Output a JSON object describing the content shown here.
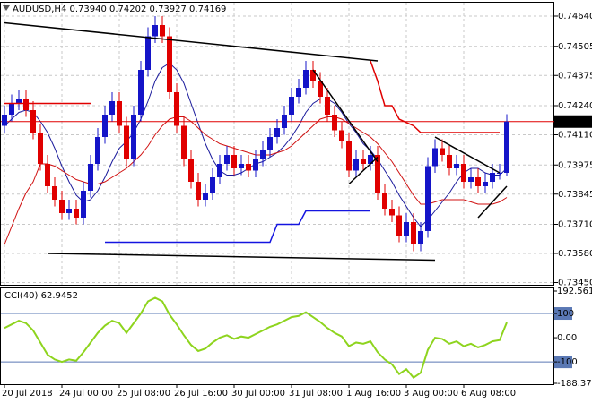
{
  "chart_data": [
    {
      "type": "candlestick",
      "title": "AUDUSD,H4 0.73940 0.74202 0.73927 0.74169",
      "categories": [
        "20 Jul 2018",
        null,
        null,
        null,
        null,
        null,
        null,
        null,
        "24 Jul 00:00",
        null,
        null,
        null,
        null,
        null,
        null,
        null,
        "25 Jul 08:00",
        null,
        null,
        null,
        null,
        null,
        null,
        null,
        "26 Jul 16:00",
        null,
        null,
        null,
        null,
        null,
        null,
        null,
        "30 Jul 00:00",
        null,
        null,
        null,
        null,
        null,
        null,
        null,
        "31 Jul 08:00",
        null,
        null,
        null,
        null,
        null,
        null,
        null,
        "1 Aug 16:00",
        null,
        null,
        null,
        null,
        null,
        null,
        null,
        "3 Aug 00:00",
        null,
        null,
        null,
        null,
        null,
        null,
        null,
        "6 Aug 08:00",
        null,
        null,
        null,
        null,
        null,
        null
      ],
      "open": [
        0.7415,
        0.742,
        0.7425,
        0.7427,
        0.7422,
        0.7412,
        0.7398,
        0.7388,
        0.7382,
        0.7376,
        0.7378,
        0.7374,
        0.7386,
        0.7398,
        0.741,
        0.742,
        0.7426,
        0.7415,
        0.74,
        0.742,
        0.744,
        0.7455,
        0.746,
        0.7455,
        0.743,
        0.7415,
        0.74,
        0.739,
        0.7382,
        0.7385,
        0.7392,
        0.7398,
        0.7402,
        0.7396,
        0.7398,
        0.7395,
        0.74,
        0.7404,
        0.741,
        0.7414,
        0.742,
        0.7428,
        0.7432,
        0.744,
        0.7435,
        0.7428,
        0.742,
        0.7413,
        0.7408,
        0.7395,
        0.74,
        0.7398,
        0.7402,
        0.7385,
        0.7378,
        0.7375,
        0.7366,
        0.7372,
        0.7362,
        0.7368,
        0.7397,
        0.7405,
        0.7402,
        0.7396,
        0.7398,
        0.739,
        0.7392,
        0.7388,
        0.739,
        0.7394,
        0.7394
      ],
      "high": [
        0.7424,
        0.7429,
        0.7431,
        0.7431,
        0.7426,
        0.7416,
        0.7402,
        0.7392,
        0.7386,
        0.7382,
        0.7382,
        0.739,
        0.7402,
        0.7414,
        0.7424,
        0.743,
        0.743,
        0.7419,
        0.7424,
        0.7444,
        0.7459,
        0.7464,
        0.7464,
        0.7459,
        0.7434,
        0.7419,
        0.7404,
        0.7394,
        0.7389,
        0.7396,
        0.7402,
        0.7406,
        0.7406,
        0.7402,
        0.7402,
        0.7404,
        0.7408,
        0.7414,
        0.7418,
        0.7424,
        0.7432,
        0.7436,
        0.7444,
        0.7444,
        0.7439,
        0.7432,
        0.7424,
        0.7417,
        0.7412,
        0.7404,
        0.7404,
        0.7406,
        0.7406,
        0.7389,
        0.7382,
        0.7379,
        0.7376,
        0.7376,
        0.7372,
        0.7401,
        0.7409,
        0.7409,
        0.7406,
        0.7402,
        0.7402,
        0.7396,
        0.7396,
        0.7394,
        0.7398,
        0.7398,
        0.74202
      ],
      "low": [
        0.7412,
        0.7417,
        0.7422,
        0.7419,
        0.7409,
        0.7395,
        0.7385,
        0.7379,
        0.7373,
        0.7373,
        0.7371,
        0.7371,
        0.7383,
        0.7395,
        0.7407,
        0.7417,
        0.7412,
        0.7397,
        0.7397,
        0.7417,
        0.7437,
        0.7452,
        0.7452,
        0.7427,
        0.7412,
        0.7397,
        0.7387,
        0.7379,
        0.7379,
        0.7382,
        0.7389,
        0.7395,
        0.7393,
        0.7393,
        0.7392,
        0.7392,
        0.7397,
        0.7401,
        0.7407,
        0.7411,
        0.7417,
        0.7425,
        0.7429,
        0.7432,
        0.7425,
        0.7417,
        0.741,
        0.7405,
        0.7392,
        0.7392,
        0.7395,
        0.7395,
        0.7382,
        0.7375,
        0.7372,
        0.7363,
        0.7363,
        0.7359,
        0.7359,
        0.7365,
        0.7394,
        0.7399,
        0.7393,
        0.7393,
        0.7387,
        0.7387,
        0.7385,
        0.7385,
        0.7387,
        0.7391,
        0.73927
      ],
      "close": [
        0.742,
        0.7425,
        0.7427,
        0.7422,
        0.7412,
        0.7398,
        0.7388,
        0.7382,
        0.7376,
        0.7378,
        0.7374,
        0.7386,
        0.7398,
        0.741,
        0.742,
        0.7426,
        0.7415,
        0.74,
        0.742,
        0.744,
        0.7455,
        0.746,
        0.7455,
        0.743,
        0.7415,
        0.74,
        0.739,
        0.7382,
        0.7385,
        0.7392,
        0.7398,
        0.7402,
        0.7396,
        0.7398,
        0.7395,
        0.74,
        0.7404,
        0.741,
        0.7414,
        0.742,
        0.7428,
        0.7432,
        0.744,
        0.7435,
        0.7428,
        0.742,
        0.7413,
        0.7408,
        0.7395,
        0.74,
        0.7398,
        0.7402,
        0.7385,
        0.7378,
        0.7375,
        0.7366,
        0.7372,
        0.7362,
        0.7368,
        0.7397,
        0.7405,
        0.7402,
        0.7396,
        0.7398,
        0.739,
        0.7392,
        0.7388,
        0.739,
        0.7394,
        0.7394,
        0.74169
      ],
      "up_color": "#1414c8",
      "down_color": "#e00000",
      "series": [
        {
          "color": "#1a1a9c",
          "values": [
            0.7415,
            0.7418,
            0.7421,
            0.7422,
            0.7421,
            0.7417,
            0.7412,
            0.7405,
            0.7397,
            0.739,
            0.7384,
            0.7381,
            0.7382,
            0.7386,
            0.7392,
            0.7399,
            0.7405,
            0.7408,
            0.7412,
            0.7418,
            0.7426,
            0.7435,
            0.7441,
            0.7443,
            0.744,
            0.7434,
            0.7425,
            0.7416,
            0.7407,
            0.74,
            0.7395,
            0.7393,
            0.7393,
            0.7394,
            0.7396,
            0.7398,
            0.7399,
            0.7401,
            0.7403,
            0.7406,
            0.741,
            0.7415,
            0.7421,
            0.7425,
            0.7427,
            0.7427,
            0.7425,
            0.7421,
            0.7416,
            0.7412,
            0.7407,
            0.7404,
            0.74,
            0.7395,
            0.739,
            0.7384,
            0.7379,
            0.7374,
            0.737,
            0.7373,
            0.7377,
            0.7381,
            0.7385,
            0.739,
            0.7394,
            0.7396,
            0.7396,
            0.7394,
            0.7393,
            0.7393,
            0.7396
          ]
        },
        {
          "color": "#d01010",
          "values": [
            0.7362,
            0.737,
            0.7378,
            0.7385,
            0.739,
            0.7398,
            0.7398,
            0.7397,
            0.7395,
            0.7393,
            0.7391,
            0.739,
            0.7389,
            0.7389,
            0.739,
            0.7392,
            0.7394,
            0.7396,
            0.7399,
            0.7402,
            0.7406,
            0.7411,
            0.7415,
            0.7418,
            0.7419,
            0.7419,
            0.7417,
            0.7414,
            0.7411,
            0.7409,
            0.7407,
            0.7406,
            0.7405,
            0.7404,
            0.7403,
            0.7402,
            0.7402,
            0.7402,
            0.7403,
            0.7404,
            0.7406,
            0.7409,
            0.7412,
            0.7415,
            0.7418,
            0.7419,
            0.7419,
            0.7418,
            0.7416,
            0.7414,
            0.7412,
            0.741,
            0.7407,
            0.7403,
            0.7399,
            0.7394,
            0.7389,
            0.7384,
            0.738,
            0.738,
            0.7381,
            0.7382,
            0.7382,
            0.7382,
            0.7382,
            0.7381,
            0.738,
            0.738,
            0.738,
            0.7381,
            0.7383
          ]
        }
      ],
      "lines": [
        {
          "color": "#000000",
          "x": [
            0,
            52
          ],
          "values": [
            0.7461,
            0.7444
          ]
        },
        {
          "color": "#000000",
          "x": [
            6,
            60
          ],
          "values": [
            0.7358,
            0.7355
          ]
        },
        {
          "color": "#000000",
          "x": [
            43,
            52
          ],
          "values": [
            0.744,
            0.7399
          ]
        },
        {
          "color": "#000000",
          "x": [
            48,
            52
          ],
          "values": [
            0.7389,
            0.7401
          ]
        },
        {
          "color": "#000000",
          "x": [
            60,
            69
          ],
          "values": [
            0.741,
            0.7394
          ]
        },
        {
          "color": "#000000",
          "x": [
            66,
            70
          ],
          "values": [
            0.7374,
            0.7388
          ]
        },
        {
          "color": "#e00000",
          "x": [
            51,
            52,
            53,
            54,
            55,
            57,
            58,
            69
          ],
          "values": [
            0.7444,
            0.7435,
            0.7424,
            0.7424,
            0.7418,
            0.7415,
            0.7412,
            0.7412
          ]
        },
        {
          "color": "#1414e0",
          "x": [
            14,
            37,
            38,
            41,
            42,
            51
          ],
          "values": [
            0.7363,
            0.7363,
            0.7371,
            0.7371,
            0.7377,
            0.7377
          ]
        },
        {
          "color": "#e00000",
          "x": [
            0,
            12
          ],
          "values": [
            0.7425,
            0.7425
          ]
        }
      ],
      "price_label": {
        "value": 0.74169,
        "label": "0.74169"
      },
      "ylim": [
        0.7344,
        0.74692
      ],
      "yticks": [
        {
          "value": 0.7464,
          "label": "0.74640"
        },
        {
          "value": 0.74505,
          "label": "0.74505"
        },
        {
          "value": 0.74375,
          "label": "0.74375"
        },
        {
          "value": 0.7424,
          "label": "0.74240"
        },
        {
          "value": 0.7411,
          "label": "0.74110"
        },
        {
          "value": 0.73975,
          "label": "0.73975"
        },
        {
          "value": 0.73845,
          "label": "0.73845"
        },
        {
          "value": 0.7371,
          "label": "0.73710"
        },
        {
          "value": 0.7358,
          "label": "0.73580"
        },
        {
          "value": 0.7345,
          "label": "0.73450"
        }
      ],
      "grid": true
    },
    {
      "type": "line",
      "title": "CCI(40) 62.9452",
      "color": "#8ed41e",
      "values": [
        40,
        55,
        70,
        60,
        30,
        -20,
        -70,
        -90,
        -100,
        -90,
        -95,
        -60,
        -20,
        20,
        50,
        70,
        60,
        20,
        60,
        100,
        150,
        165,
        150,
        95,
        55,
        10,
        -30,
        -55,
        -45,
        -20,
        0,
        10,
        -5,
        5,
        0,
        15,
        30,
        45,
        55,
        70,
        85,
        90,
        105,
        85,
        65,
        40,
        20,
        5,
        -35,
        -20,
        -25,
        -15,
        -60,
        -90,
        -110,
        -150,
        -130,
        -165,
        -145,
        -50,
        0,
        -5,
        -25,
        -15,
        -35,
        -25,
        -40,
        -30,
        -15,
        -10,
        62.9452
      ],
      "ylim": [
        -188.3741,
        192.5615
      ],
      "yticks": [
        192.5615,
        100,
        {
          "value": 0,
          "label": "0.00"
        },
        -100,
        -188.3741
      ],
      "level_color": "#5a78b4"
    }
  ]
}
